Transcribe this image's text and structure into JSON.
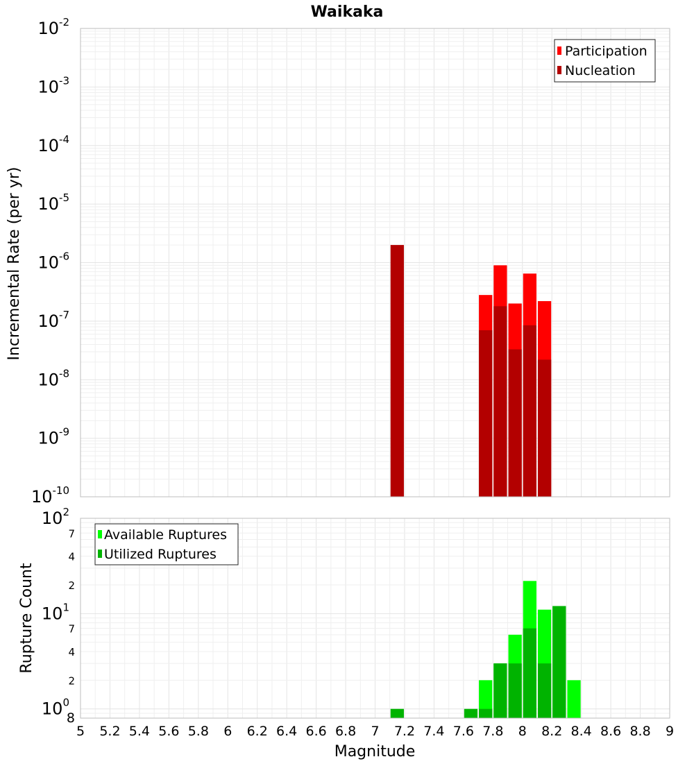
{
  "chart_data": [
    {
      "type": "bar",
      "title": "Waikaka",
      "ylabel": "Incremental Rate (per yr)",
      "xlabel": "",
      "y_scale": "log",
      "ylim": [
        1e-10,
        0.01
      ],
      "xlim": [
        5,
        9
      ],
      "y_ticks": [
        {
          "base": "10",
          "exp": "-2"
        },
        {
          "base": "10",
          "exp": "-3"
        },
        {
          "base": "10",
          "exp": "-4"
        },
        {
          "base": "10",
          "exp": "-5"
        },
        {
          "base": "10",
          "exp": "-6"
        },
        {
          "base": "10",
          "exp": "-7"
        },
        {
          "base": "10",
          "exp": "-8"
        },
        {
          "base": "10",
          "exp": "-9"
        },
        {
          "base": "10",
          "exp": "-10"
        }
      ],
      "legend": {
        "position": "top-right",
        "entries": [
          {
            "label": "Participation",
            "color": "#ff0000"
          },
          {
            "label": "Nucleation",
            "color": "#b30000"
          }
        ]
      },
      "series": [
        {
          "name": "Participation",
          "color": "#ff0000",
          "points": [
            {
              "x": 7.75,
              "y": 2.8e-07
            },
            {
              "x": 7.85,
              "y": 9e-07
            },
            {
              "x": 7.95,
              "y": 2e-07
            },
            {
              "x": 8.05,
              "y": 6.5e-07
            },
            {
              "x": 8.15,
              "y": 2.2e-07
            }
          ]
        },
        {
          "name": "Nucleation",
          "color": "#b30000",
          "points": [
            {
              "x": 7.15,
              "y": 2e-06
            },
            {
              "x": 7.75,
              "y": 7e-08
            },
            {
              "x": 7.85,
              "y": 1.8e-07
            },
            {
              "x": 7.95,
              "y": 3.3e-08
            },
            {
              "x": 8.05,
              "y": 8.5e-08
            },
            {
              "x": 8.15,
              "y": 2.2e-08
            }
          ]
        }
      ]
    },
    {
      "type": "bar",
      "title": "",
      "ylabel": "Rupture Count",
      "xlabel": "Magnitude",
      "y_scale": "log",
      "ylim": [
        0.8,
        100
      ],
      "xlim": [
        5,
        9
      ],
      "x_ticks": [
        "5",
        "5.2",
        "5.4",
        "5.6",
        "5.8",
        "6",
        "6.2",
        "6.4",
        "6.6",
        "6.8",
        "7",
        "7.2",
        "7.4",
        "7.6",
        "7.8",
        "8",
        "8.2",
        "8.4",
        "8.6",
        "8.8",
        "9"
      ],
      "y_major_ticks": [
        {
          "value": 100,
          "base": "10",
          "exp": "2"
        },
        {
          "value": 10,
          "base": "10",
          "exp": "1"
        },
        {
          "value": 1,
          "base": "10",
          "exp": "0"
        }
      ],
      "y_minor_ticks": [
        {
          "value": 70,
          "label": "7"
        },
        {
          "value": 40,
          "label": "4"
        },
        {
          "value": 20,
          "label": "2"
        },
        {
          "value": 7,
          "label": "7"
        },
        {
          "value": 4,
          "label": "4"
        },
        {
          "value": 2,
          "label": "2"
        },
        {
          "value": 0.8,
          "label": "8"
        }
      ],
      "legend": {
        "position": "top-left",
        "entries": [
          {
            "label": "Available Ruptures",
            "color": "#00ff00"
          },
          {
            "label": "Utilized Ruptures",
            "color": "#00b300"
          }
        ]
      },
      "series": [
        {
          "name": "Available Ruptures",
          "color": "#00ff00",
          "points": [
            {
              "x": 7.75,
              "y": 2
            },
            {
              "x": 7.85,
              "y": 3
            },
            {
              "x": 7.95,
              "y": 6
            },
            {
              "x": 8.05,
              "y": 22
            },
            {
              "x": 8.15,
              "y": 11
            },
            {
              "x": 8.25,
              "y": 12
            },
            {
              "x": 8.35,
              "y": 2
            }
          ]
        },
        {
          "name": "Utilized Ruptures",
          "color": "#00b300",
          "points": [
            {
              "x": 7.15,
              "y": 1
            },
            {
              "x": 7.65,
              "y": 1
            },
            {
              "x": 7.75,
              "y": 1
            },
            {
              "x": 7.85,
              "y": 3
            },
            {
              "x": 7.95,
              "y": 3
            },
            {
              "x": 8.05,
              "y": 7
            },
            {
              "x": 8.15,
              "y": 3
            },
            {
              "x": 8.25,
              "y": 12
            }
          ]
        }
      ]
    }
  ]
}
